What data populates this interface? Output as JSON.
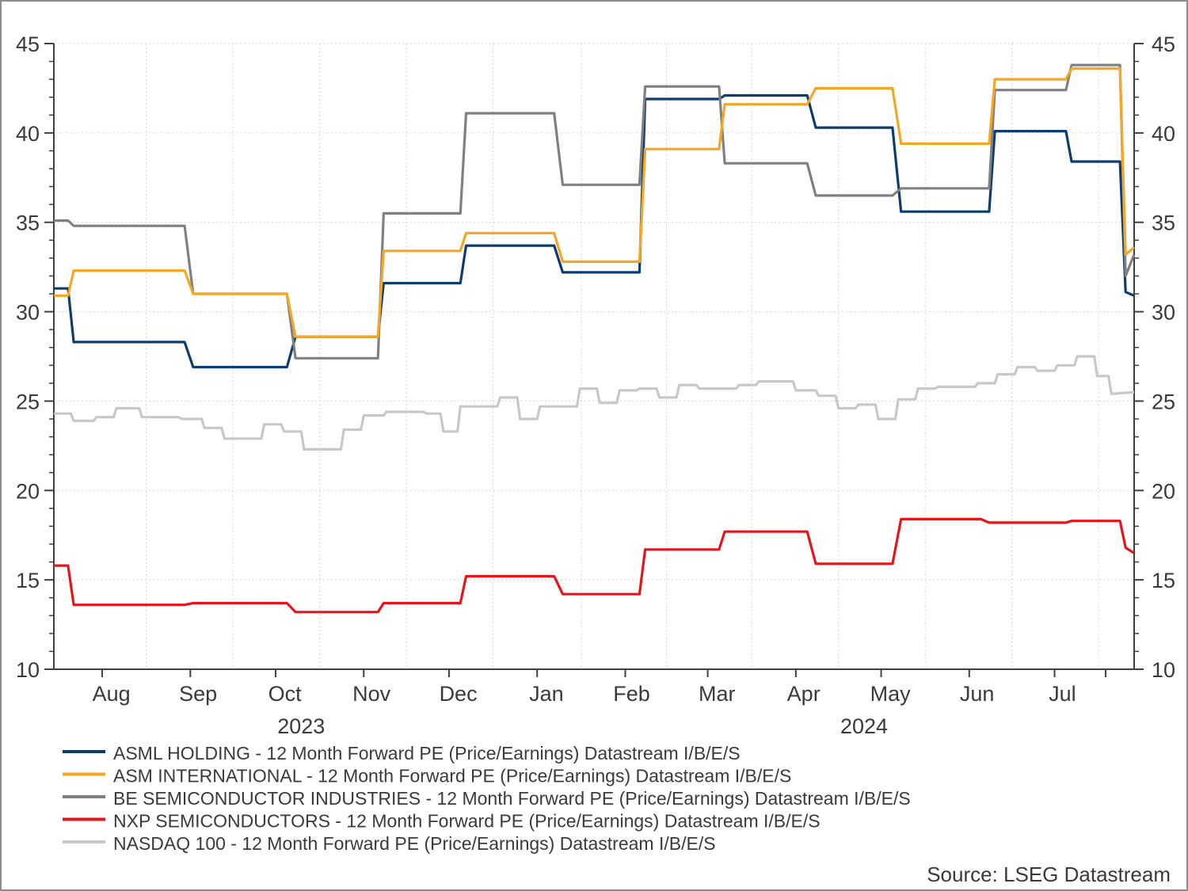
{
  "chart_data": {
    "type": "line",
    "title": "",
    "x_axis": {
      "months": [
        "Aug",
        "Sep",
        "Oct",
        "Nov",
        "Dec",
        "Jan",
        "Feb",
        "Mar",
        "Apr",
        "May",
        "Jun",
        "Jul"
      ],
      "years": [
        "2023",
        "2024"
      ],
      "range": [
        "2023-07-15",
        "2024-07-29"
      ]
    },
    "y_axis": {
      "range": [
        10,
        45
      ],
      "ticks": [
        10,
        15,
        20,
        25,
        30,
        35,
        40,
        45
      ],
      "right_axis_mirror": true
    },
    "grid": true,
    "legend_position": "bottom",
    "source": "Source: LSEG Datastream",
    "series": [
      {
        "name": "ASML HOLDING - 12 Month Forward PE (Price/Earnings) Datastream I/B/E/S",
        "color": "#0d3c6e",
        "points": [
          [
            "2023-07-15",
            31.3
          ],
          [
            "2023-07-20",
            31.3
          ],
          [
            "2023-07-22",
            28.3
          ],
          [
            "2023-08-30",
            28.3
          ],
          [
            "2023-09-02",
            26.9
          ],
          [
            "2023-10-05",
            26.9
          ],
          [
            "2023-10-08",
            28.6
          ],
          [
            "2023-11-06",
            28.6
          ],
          [
            "2023-11-08",
            31.6
          ],
          [
            "2023-12-05",
            31.6
          ],
          [
            "2023-12-07",
            33.7
          ],
          [
            "2024-01-07",
            33.7
          ],
          [
            "2024-01-10",
            32.2
          ],
          [
            "2024-02-06",
            32.2
          ],
          [
            "2024-02-08",
            41.9
          ],
          [
            "2024-03-05",
            41.9
          ],
          [
            "2024-03-07",
            42.1
          ],
          [
            "2024-04-05",
            42.1
          ],
          [
            "2024-04-08",
            40.3
          ],
          [
            "2024-05-05",
            40.3
          ],
          [
            "2024-05-08",
            35.6
          ],
          [
            "2024-06-08",
            35.6
          ],
          [
            "2024-06-10",
            40.1
          ],
          [
            "2024-07-05",
            40.1
          ],
          [
            "2024-07-07",
            38.4
          ],
          [
            "2024-07-24",
            38.4
          ],
          [
            "2024-07-26",
            31.1
          ],
          [
            "2024-07-29",
            30.9
          ]
        ]
      },
      {
        "name": "ASM INTERNATIONAL - 12 Month Forward PE (Price/Earnings) Datastream I/B/E/S",
        "color": "#f5a623",
        "points": [
          [
            "2023-07-15",
            30.9
          ],
          [
            "2023-07-20",
            30.9
          ],
          [
            "2023-07-22",
            32.3
          ],
          [
            "2023-08-30",
            32.3
          ],
          [
            "2023-09-02",
            31.0
          ],
          [
            "2023-10-05",
            31.0
          ],
          [
            "2023-10-08",
            28.6
          ],
          [
            "2023-11-06",
            28.6
          ],
          [
            "2023-11-08",
            33.4
          ],
          [
            "2023-12-05",
            33.4
          ],
          [
            "2023-12-07",
            34.4
          ],
          [
            "2024-01-07",
            34.4
          ],
          [
            "2024-01-10",
            32.8
          ],
          [
            "2024-02-06",
            32.8
          ],
          [
            "2024-02-08",
            39.1
          ],
          [
            "2024-03-05",
            39.1
          ],
          [
            "2024-03-07",
            41.6
          ],
          [
            "2024-04-05",
            41.6
          ],
          [
            "2024-04-08",
            42.5
          ],
          [
            "2024-05-05",
            42.5
          ],
          [
            "2024-05-08",
            39.4
          ],
          [
            "2024-06-08",
            39.4
          ],
          [
            "2024-06-10",
            43.0
          ],
          [
            "2024-07-05",
            43.0
          ],
          [
            "2024-07-07",
            43.6
          ],
          [
            "2024-07-24",
            43.6
          ],
          [
            "2024-07-26",
            33.2
          ],
          [
            "2024-07-29",
            33.6
          ]
        ]
      },
      {
        "name": "BE SEMICONDUCTOR INDUSTRIES - 12 Month Forward PE (Price/Earnings) Datastream I/B/E/S",
        "color": "#808080",
        "points": [
          [
            "2023-07-15",
            35.1
          ],
          [
            "2023-07-20",
            35.1
          ],
          [
            "2023-07-22",
            34.8
          ],
          [
            "2023-08-30",
            34.8
          ],
          [
            "2023-09-02",
            31.0
          ],
          [
            "2023-10-05",
            31.0
          ],
          [
            "2023-10-08",
            27.4
          ],
          [
            "2023-11-06",
            27.4
          ],
          [
            "2023-11-08",
            35.5
          ],
          [
            "2023-12-05",
            35.5
          ],
          [
            "2023-12-07",
            41.1
          ],
          [
            "2024-01-07",
            41.1
          ],
          [
            "2024-01-10",
            37.1
          ],
          [
            "2024-02-06",
            37.1
          ],
          [
            "2024-02-08",
            42.6
          ],
          [
            "2024-03-05",
            42.6
          ],
          [
            "2024-03-07",
            38.3
          ],
          [
            "2024-04-05",
            38.3
          ],
          [
            "2024-04-08",
            36.5
          ],
          [
            "2024-05-05",
            36.5
          ],
          [
            "2024-05-08",
            36.9
          ],
          [
            "2024-06-08",
            36.9
          ],
          [
            "2024-06-10",
            42.4
          ],
          [
            "2024-07-05",
            42.4
          ],
          [
            "2024-07-07",
            43.8
          ],
          [
            "2024-07-24",
            43.8
          ],
          [
            "2024-07-26",
            32.0
          ],
          [
            "2024-07-29",
            33.2
          ]
        ]
      },
      {
        "name": "NXP SEMICONDUCTORS - 12 Month Forward PE (Price/Earnings) Datastream I/B/E/S",
        "color": "#e8141c",
        "points": [
          [
            "2023-07-15",
            15.8
          ],
          [
            "2023-07-20",
            15.8
          ],
          [
            "2023-07-22",
            13.6
          ],
          [
            "2023-08-30",
            13.6
          ],
          [
            "2023-09-02",
            13.7
          ],
          [
            "2023-10-05",
            13.7
          ],
          [
            "2023-10-08",
            13.2
          ],
          [
            "2023-11-06",
            13.2
          ],
          [
            "2023-11-08",
            13.7
          ],
          [
            "2023-12-05",
            13.7
          ],
          [
            "2023-12-07",
            15.2
          ],
          [
            "2024-01-07",
            15.2
          ],
          [
            "2024-01-10",
            14.2
          ],
          [
            "2024-02-06",
            14.2
          ],
          [
            "2024-02-08",
            16.7
          ],
          [
            "2024-03-05",
            16.7
          ],
          [
            "2024-03-07",
            17.7
          ],
          [
            "2024-04-05",
            17.7
          ],
          [
            "2024-04-08",
            15.9
          ],
          [
            "2024-05-05",
            15.9
          ],
          [
            "2024-05-08",
            18.4
          ],
          [
            "2024-06-05",
            18.4
          ],
          [
            "2024-06-08",
            18.2
          ],
          [
            "2024-07-05",
            18.2
          ],
          [
            "2024-07-07",
            18.3
          ],
          [
            "2024-07-24",
            18.3
          ],
          [
            "2024-07-26",
            16.8
          ],
          [
            "2024-07-29",
            16.5
          ]
        ]
      },
      {
        "name": "NASDAQ 100 - 12 Month Forward PE (Price/Earnings) Datastream I/B/E/S",
        "color": "#c8c8c8",
        "points": [
          [
            "2023-07-15",
            24.3
          ],
          [
            "2023-07-21",
            24.3
          ],
          [
            "2023-07-22",
            23.9
          ],
          [
            "2023-07-29",
            23.9
          ],
          [
            "2023-07-30",
            24.1
          ],
          [
            "2023-08-05",
            24.1
          ],
          [
            "2023-08-06",
            24.6
          ],
          [
            "2023-08-14",
            24.6
          ],
          [
            "2023-08-15",
            24.1
          ],
          [
            "2023-08-28",
            24.1
          ],
          [
            "2023-08-29",
            24.0
          ],
          [
            "2023-09-05",
            24.0
          ],
          [
            "2023-09-06",
            23.5
          ],
          [
            "2023-09-12",
            23.5
          ],
          [
            "2023-09-13",
            22.9
          ],
          [
            "2023-09-26",
            22.9
          ],
          [
            "2023-09-27",
            23.7
          ],
          [
            "2023-10-03",
            23.7
          ],
          [
            "2023-10-04",
            23.3
          ],
          [
            "2023-10-10",
            23.3
          ],
          [
            "2023-10-11",
            22.3
          ],
          [
            "2023-10-24",
            22.3
          ],
          [
            "2023-10-25",
            23.4
          ],
          [
            "2023-10-31",
            23.4
          ],
          [
            "2023-11-01",
            24.2
          ],
          [
            "2023-11-08",
            24.2
          ],
          [
            "2023-11-09",
            24.4
          ],
          [
            "2023-11-22",
            24.4
          ],
          [
            "2023-11-23",
            24.3
          ],
          [
            "2023-11-28",
            24.3
          ],
          [
            "2023-11-29",
            23.3
          ],
          [
            "2023-12-04",
            23.3
          ],
          [
            "2023-12-05",
            24.7
          ],
          [
            "2023-12-18",
            24.7
          ],
          [
            "2023-12-19",
            25.2
          ],
          [
            "2023-12-25",
            25.2
          ],
          [
            "2023-12-26",
            24.0
          ],
          [
            "2024-01-01",
            24.0
          ],
          [
            "2024-01-02",
            24.7
          ],
          [
            "2024-01-15",
            24.7
          ],
          [
            "2024-01-16",
            25.7
          ],
          [
            "2024-01-22",
            25.7
          ],
          [
            "2024-01-23",
            24.9
          ],
          [
            "2024-01-29",
            24.9
          ],
          [
            "2024-01-30",
            25.6
          ],
          [
            "2024-02-05",
            25.6
          ],
          [
            "2024-02-06",
            25.7
          ],
          [
            "2024-02-12",
            25.7
          ],
          [
            "2024-02-13",
            25.2
          ],
          [
            "2024-02-19",
            25.2
          ],
          [
            "2024-02-20",
            25.9
          ],
          [
            "2024-02-26",
            25.9
          ],
          [
            "2024-02-27",
            25.7
          ],
          [
            "2024-03-11",
            25.7
          ],
          [
            "2024-03-12",
            25.9
          ],
          [
            "2024-03-18",
            25.9
          ],
          [
            "2024-03-19",
            26.1
          ],
          [
            "2024-03-31",
            26.1
          ],
          [
            "2024-04-01",
            25.6
          ],
          [
            "2024-04-08",
            25.6
          ],
          [
            "2024-04-09",
            25.3
          ],
          [
            "2024-04-15",
            25.3
          ],
          [
            "2024-04-16",
            24.6
          ],
          [
            "2024-04-22",
            24.6
          ],
          [
            "2024-04-23",
            24.8
          ],
          [
            "2024-04-29",
            24.8
          ],
          [
            "2024-04-30",
            24.0
          ],
          [
            "2024-05-06",
            24.0
          ],
          [
            "2024-05-07",
            25.1
          ],
          [
            "2024-05-13",
            25.1
          ],
          [
            "2024-05-14",
            25.7
          ],
          [
            "2024-05-20",
            25.7
          ],
          [
            "2024-05-21",
            25.8
          ],
          [
            "2024-06-03",
            25.8
          ],
          [
            "2024-06-04",
            26.0
          ],
          [
            "2024-06-10",
            26.0
          ],
          [
            "2024-06-11",
            26.5
          ],
          [
            "2024-06-17",
            26.5
          ],
          [
            "2024-06-18",
            26.9
          ],
          [
            "2024-06-24",
            26.9
          ],
          [
            "2024-06-25",
            26.7
          ],
          [
            "2024-07-01",
            26.7
          ],
          [
            "2024-07-02",
            27.0
          ],
          [
            "2024-07-08",
            27.0
          ],
          [
            "2024-07-09",
            27.5
          ],
          [
            "2024-07-15",
            27.5
          ],
          [
            "2024-07-16",
            26.4
          ],
          [
            "2024-07-20",
            26.4
          ],
          [
            "2024-07-21",
            25.4
          ],
          [
            "2024-07-29",
            25.5
          ]
        ]
      }
    ]
  }
}
